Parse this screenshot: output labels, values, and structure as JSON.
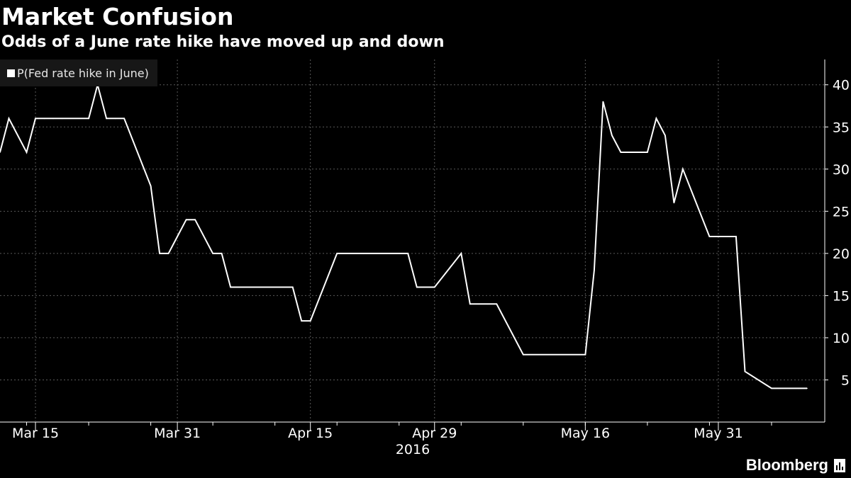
{
  "header": {
    "title": "Market Confusion",
    "subtitle": "Odds of a June rate hike have moved up and down"
  },
  "brand": {
    "name": "Bloomberg",
    "icon": "bloomberg-bars-icon"
  },
  "colors": {
    "background": "#000000",
    "line": "#ffffff",
    "grid": "#5a5a5a",
    "text": "#ffffff",
    "legend_bg": "#171717"
  },
  "chart_data": {
    "type": "line",
    "title": "Market Confusion",
    "subtitle": "Odds of a June rate hike have moved up and down",
    "xlabel": "2016",
    "ylabel": "",
    "x_tick_labels": [
      "Mar 15",
      "Mar 31",
      "Apr 15",
      "Apr 29",
      "May 16",
      "May 31"
    ],
    "y_ticks": [
      5,
      10,
      15,
      20,
      25,
      30,
      35,
      40
    ],
    "ylim": [
      0,
      43
    ],
    "xlim": [
      "2016-03-11",
      "2016-06-12"
    ],
    "grid": true,
    "y_axis_side": "right",
    "legend_position": "top-left",
    "series": [
      {
        "name": "P(Fed rate hike in June)",
        "color": "#ffffff",
        "points": [
          [
            "2016-03-11",
            32
          ],
          [
            "2016-03-12",
            36
          ],
          [
            "2016-03-14",
            32
          ],
          [
            "2016-03-15",
            36
          ],
          [
            "2016-03-16",
            36
          ],
          [
            "2016-03-17",
            36
          ],
          [
            "2016-03-18",
            36
          ],
          [
            "2016-03-21",
            36
          ],
          [
            "2016-03-22",
            40
          ],
          [
            "2016-03-23",
            36
          ],
          [
            "2016-03-24",
            36
          ],
          [
            "2016-03-25",
            36
          ],
          [
            "2016-03-28",
            28
          ],
          [
            "2016-03-29",
            20
          ],
          [
            "2016-03-30",
            20
          ],
          [
            "2016-04-01",
            24
          ],
          [
            "2016-04-02",
            24
          ],
          [
            "2016-04-04",
            20
          ],
          [
            "2016-04-05",
            20
          ],
          [
            "2016-04-06",
            16
          ],
          [
            "2016-04-07",
            16
          ],
          [
            "2016-04-08",
            16
          ],
          [
            "2016-04-11",
            16
          ],
          [
            "2016-04-12",
            16
          ],
          [
            "2016-04-13",
            16
          ],
          [
            "2016-04-14",
            12
          ],
          [
            "2016-04-15",
            12
          ],
          [
            "2016-04-18",
            20
          ],
          [
            "2016-04-19",
            20
          ],
          [
            "2016-04-20",
            20
          ],
          [
            "2016-04-21",
            20
          ],
          [
            "2016-04-22",
            20
          ],
          [
            "2016-04-25",
            20
          ],
          [
            "2016-04-26",
            20
          ],
          [
            "2016-04-27",
            16
          ],
          [
            "2016-04-28",
            16
          ],
          [
            "2016-04-29",
            16
          ],
          [
            "2016-05-02",
            20
          ],
          [
            "2016-05-03",
            14
          ],
          [
            "2016-05-04",
            14
          ],
          [
            "2016-05-05",
            14
          ],
          [
            "2016-05-06",
            14
          ],
          [
            "2016-05-09",
            8
          ],
          [
            "2016-05-10",
            8
          ],
          [
            "2016-05-11",
            8
          ],
          [
            "2016-05-12",
            8
          ],
          [
            "2016-05-13",
            8
          ],
          [
            "2016-05-16",
            8
          ],
          [
            "2016-05-17",
            18
          ],
          [
            "2016-05-18",
            38
          ],
          [
            "2016-05-19",
            34
          ],
          [
            "2016-05-20",
            32
          ],
          [
            "2016-05-23",
            32
          ],
          [
            "2016-05-24",
            36
          ],
          [
            "2016-05-25",
            34
          ],
          [
            "2016-05-26",
            26
          ],
          [
            "2016-05-27",
            30
          ],
          [
            "2016-05-30",
            22
          ],
          [
            "2016-05-31",
            22
          ],
          [
            "2016-06-01",
            22
          ],
          [
            "2016-06-02",
            22
          ],
          [
            "2016-06-03",
            6
          ],
          [
            "2016-06-06",
            4
          ],
          [
            "2016-06-07",
            4
          ],
          [
            "2016-06-08",
            4
          ],
          [
            "2016-06-09",
            4
          ],
          [
            "2016-06-10",
            4
          ]
        ]
      }
    ]
  }
}
